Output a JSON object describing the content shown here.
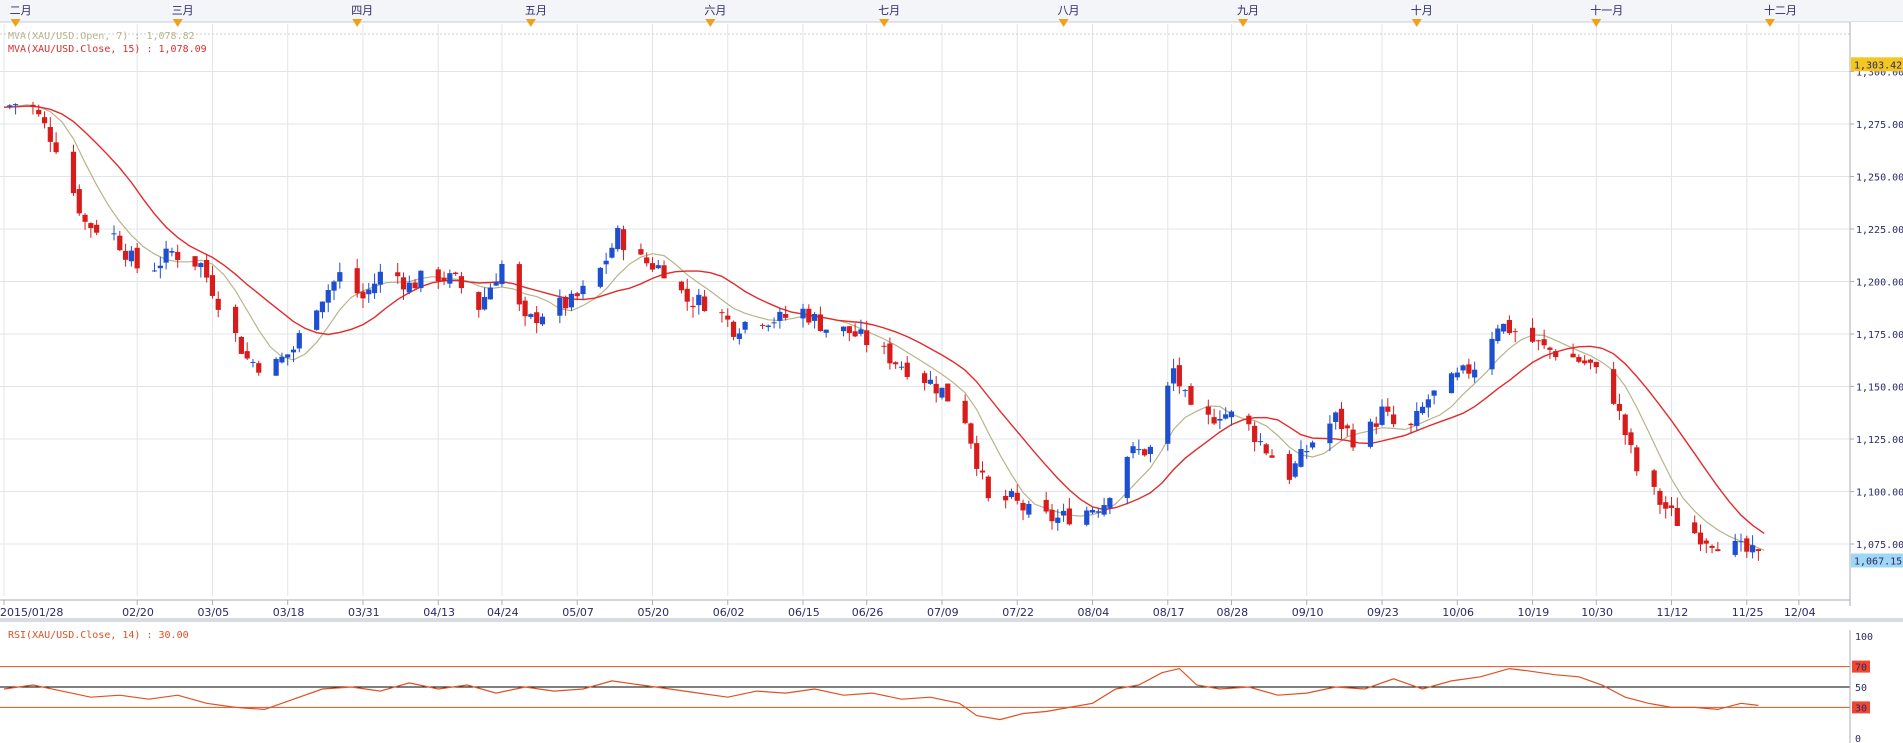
{
  "chart_data": [
    {
      "type": "candlestick",
      "legend": [
        {
          "text": "MVA(XAU/USD.Open, 7) : 1,078.82",
          "color": "#b8b48a"
        },
        {
          "text": "MVA(XAU/USD.Close, 15) : 1,078.09",
          "color": "#e22b2b"
        }
      ],
      "top_axis_months": [
        {
          "label": "二月",
          "day": 2
        },
        {
          "label": "三月",
          "day": 30
        },
        {
          "label": "四月",
          "day": 61
        },
        {
          "label": "五月",
          "day": 91
        },
        {
          "label": "六月",
          "day": 122
        },
        {
          "label": "七月",
          "day": 152
        },
        {
          "label": "八月",
          "day": 183
        },
        {
          "label": "九月",
          "day": 214
        },
        {
          "label": "十月",
          "day": 244
        },
        {
          "label": "十一月",
          "day": 275
        },
        {
          "label": "十二月",
          "day": 305
        }
      ],
      "x_tick_labels": [
        {
          "label": "2015/01/28",
          "day": 0
        },
        {
          "label": "02/20",
          "day": 23
        },
        {
          "label": "03/05",
          "day": 36
        },
        {
          "label": "03/18",
          "day": 49
        },
        {
          "label": "03/31",
          "day": 62
        },
        {
          "label": "04/13",
          "day": 75
        },
        {
          "label": "04/24",
          "day": 86
        },
        {
          "label": "05/07",
          "day": 99
        },
        {
          "label": "05/20",
          "day": 112
        },
        {
          "label": "06/02",
          "day": 125
        },
        {
          "label": "06/15",
          "day": 138
        },
        {
          "label": "06/26",
          "day": 149
        },
        {
          "label": "07/09",
          "day": 162
        },
        {
          "label": "07/22",
          "day": 175
        },
        {
          "label": "08/04",
          "day": 188
        },
        {
          "label": "08/17",
          "day": 201
        },
        {
          "label": "08/28",
          "day": 212
        },
        {
          "label": "09/10",
          "day": 225
        },
        {
          "label": "09/23",
          "day": 238
        },
        {
          "label": "10/06",
          "day": 251
        },
        {
          "label": "10/19",
          "day": 264
        },
        {
          "label": "10/30",
          "day": 275
        },
        {
          "label": "11/12",
          "day": 288
        },
        {
          "label": "11/25",
          "day": 301
        },
        {
          "label": "12/04",
          "day": 310
        }
      ],
      "y_tick_labels": [
        "1,300.00",
        "1,275.00",
        "1,250.00",
        "1,225.00",
        "1,200.00",
        "1,175.00",
        "1,150.00",
        "1,125.00",
        "1,100.00",
        "1,075.00"
      ],
      "ylim": [
        1055,
        1315
      ],
      "price_tags": [
        {
          "label": "1,303.42",
          "value": 1303.42,
          "bg": "#f3c71f"
        },
        {
          "label": "1,067.15",
          "value": 1067.15,
          "bg": "#9fd8f5"
        }
      ],
      "colors": {
        "up": "#1f4fd1",
        "down": "#d81c1c",
        "ma_fast": "#b8b48a",
        "ma_slow": "#e22b2b"
      },
      "close_path": [
        {
          "day": 0,
          "close": 1283
        },
        {
          "day": 4,
          "close": 1287
        },
        {
          "day": 9,
          "close": 1265
        },
        {
          "day": 14,
          "close": 1228
        },
        {
          "day": 19,
          "close": 1222
        },
        {
          "day": 24,
          "close": 1203
        },
        {
          "day": 29,
          "close": 1214
        },
        {
          "day": 34,
          "close": 1208
        },
        {
          "day": 38,
          "close": 1185
        },
        {
          "day": 42,
          "close": 1163
        },
        {
          "day": 46,
          "close": 1158
        },
        {
          "day": 50,
          "close": 1168
        },
        {
          "day": 54,
          "close": 1190
        },
        {
          "day": 58,
          "close": 1203
        },
        {
          "day": 62,
          "close": 1192
        },
        {
          "day": 66,
          "close": 1207
        },
        {
          "day": 70,
          "close": 1198
        },
        {
          "day": 74,
          "close": 1204
        },
        {
          "day": 78,
          "close": 1200
        },
        {
          "day": 82,
          "close": 1188
        },
        {
          "day": 86,
          "close": 1208
        },
        {
          "day": 90,
          "close": 1180
        },
        {
          "day": 94,
          "close": 1187
        },
        {
          "day": 98,
          "close": 1190
        },
        {
          "day": 102,
          "close": 1200
        },
        {
          "day": 106,
          "close": 1222
        },
        {
          "day": 110,
          "close": 1210
        },
        {
          "day": 114,
          "close": 1206
        },
        {
          "day": 118,
          "close": 1191
        },
        {
          "day": 122,
          "close": 1190
        },
        {
          "day": 126,
          "close": 1178
        },
        {
          "day": 130,
          "close": 1183
        },
        {
          "day": 134,
          "close": 1182
        },
        {
          "day": 138,
          "close": 1186
        },
        {
          "day": 142,
          "close": 1178
        },
        {
          "day": 146,
          "close": 1176
        },
        {
          "day": 150,
          "close": 1170
        },
        {
          "day": 154,
          "close": 1162
        },
        {
          "day": 158,
          "close": 1156
        },
        {
          "day": 162,
          "close": 1148
        },
        {
          "day": 166,
          "close": 1135
        },
        {
          "day": 170,
          "close": 1095
        },
        {
          "day": 174,
          "close": 1096
        },
        {
          "day": 178,
          "close": 1088
        },
        {
          "day": 182,
          "close": 1087
        },
        {
          "day": 186,
          "close": 1090
        },
        {
          "day": 190,
          "close": 1095
        },
        {
          "day": 194,
          "close": 1118
        },
        {
          "day": 198,
          "close": 1120
        },
        {
          "day": 202,
          "close": 1158
        },
        {
          "day": 206,
          "close": 1130
        },
        {
          "day": 210,
          "close": 1138
        },
        {
          "day": 214,
          "close": 1134
        },
        {
          "day": 218,
          "close": 1120
        },
        {
          "day": 222,
          "close": 1108
        },
        {
          "day": 226,
          "close": 1124
        },
        {
          "day": 230,
          "close": 1135
        },
        {
          "day": 234,
          "close": 1122
        },
        {
          "day": 238,
          "close": 1138
        },
        {
          "day": 242,
          "close": 1125
        },
        {
          "day": 246,
          "close": 1144
        },
        {
          "day": 250,
          "close": 1152
        },
        {
          "day": 254,
          "close": 1160
        },
        {
          "day": 258,
          "close": 1180
        },
        {
          "day": 262,
          "close": 1175
        },
        {
          "day": 266,
          "close": 1168
        },
        {
          "day": 270,
          "close": 1165
        },
        {
          "day": 274,
          "close": 1160
        },
        {
          "day": 278,
          "close": 1145
        },
        {
          "day": 282,
          "close": 1110
        },
        {
          "day": 286,
          "close": 1095
        },
        {
          "day": 290,
          "close": 1083
        },
        {
          "day": 294,
          "close": 1078
        },
        {
          "day": 298,
          "close": 1074
        },
        {
          "day": 302,
          "close": 1070
        },
        {
          "day": 304,
          "close": 1067
        }
      ]
    },
    {
      "type": "line",
      "legend": [
        {
          "text": "RSI(XAU/USD.Close, 14) : 30.00",
          "color": "#e05020"
        }
      ],
      "y_tick_labels": [
        "100",
        "70",
        "50",
        "30",
        "0"
      ],
      "ylim": [
        0,
        100
      ],
      "levels": [
        {
          "value": 70,
          "color": "#e05020",
          "tag_bg": "#f04830"
        },
        {
          "value": 50,
          "color": "#000000",
          "tag_bg": "#ffffff"
        },
        {
          "value": 30,
          "color": "#e05020",
          "tag_bg": "#f04830"
        }
      ],
      "series": [
        {
          "color": "#e05020",
          "points": [
            {
              "day": 0,
              "rsi": 48
            },
            {
              "day": 5,
              "rsi": 52
            },
            {
              "day": 10,
              "rsi": 46
            },
            {
              "day": 15,
              "rsi": 40
            },
            {
              "day": 20,
              "rsi": 42
            },
            {
              "day": 25,
              "rsi": 38
            },
            {
              "day": 30,
              "rsi": 42
            },
            {
              "day": 35,
              "rsi": 34
            },
            {
              "day": 40,
              "rsi": 30
            },
            {
              "day": 45,
              "rsi": 28
            },
            {
              "day": 50,
              "rsi": 38
            },
            {
              "day": 55,
              "rsi": 48
            },
            {
              "day": 60,
              "rsi": 50
            },
            {
              "day": 65,
              "rsi": 46
            },
            {
              "day": 70,
              "rsi": 54
            },
            {
              "day": 75,
              "rsi": 48
            },
            {
              "day": 80,
              "rsi": 52
            },
            {
              "day": 85,
              "rsi": 44
            },
            {
              "day": 90,
              "rsi": 50
            },
            {
              "day": 95,
              "rsi": 46
            },
            {
              "day": 100,
              "rsi": 48
            },
            {
              "day": 105,
              "rsi": 56
            },
            {
              "day": 110,
              "rsi": 52
            },
            {
              "day": 115,
              "rsi": 48
            },
            {
              "day": 120,
              "rsi": 44
            },
            {
              "day": 125,
              "rsi": 40
            },
            {
              "day": 130,
              "rsi": 46
            },
            {
              "day": 135,
              "rsi": 44
            },
            {
              "day": 140,
              "rsi": 48
            },
            {
              "day": 145,
              "rsi": 42
            },
            {
              "day": 150,
              "rsi": 44
            },
            {
              "day": 155,
              "rsi": 38
            },
            {
              "day": 160,
              "rsi": 40
            },
            {
              "day": 165,
              "rsi": 34
            },
            {
              "day": 168,
              "rsi": 22
            },
            {
              "day": 172,
              "rsi": 18
            },
            {
              "day": 176,
              "rsi": 24
            },
            {
              "day": 180,
              "rsi": 26
            },
            {
              "day": 184,
              "rsi": 30
            },
            {
              "day": 188,
              "rsi": 34
            },
            {
              "day": 192,
              "rsi": 48
            },
            {
              "day": 196,
              "rsi": 52
            },
            {
              "day": 200,
              "rsi": 64
            },
            {
              "day": 203,
              "rsi": 68
            },
            {
              "day": 206,
              "rsi": 52
            },
            {
              "day": 210,
              "rsi": 48
            },
            {
              "day": 215,
              "rsi": 50
            },
            {
              "day": 220,
              "rsi": 42
            },
            {
              "day": 225,
              "rsi": 44
            },
            {
              "day": 230,
              "rsi": 50
            },
            {
              "day": 235,
              "rsi": 48
            },
            {
              "day": 240,
              "rsi": 58
            },
            {
              "day": 245,
              "rsi": 48
            },
            {
              "day": 250,
              "rsi": 56
            },
            {
              "day": 255,
              "rsi": 60
            },
            {
              "day": 260,
              "rsi": 68
            },
            {
              "day": 263,
              "rsi": 66
            },
            {
              "day": 268,
              "rsi": 62
            },
            {
              "day": 272,
              "rsi": 60
            },
            {
              "day": 276,
              "rsi": 52
            },
            {
              "day": 280,
              "rsi": 40
            },
            {
              "day": 284,
              "rsi": 34
            },
            {
              "day": 288,
              "rsi": 30
            },
            {
              "day": 292,
              "rsi": 30
            },
            {
              "day": 296,
              "rsi": 28
            },
            {
              "day": 300,
              "rsi": 34
            },
            {
              "day": 303,
              "rsi": 32
            }
          ]
        }
      ]
    }
  ]
}
